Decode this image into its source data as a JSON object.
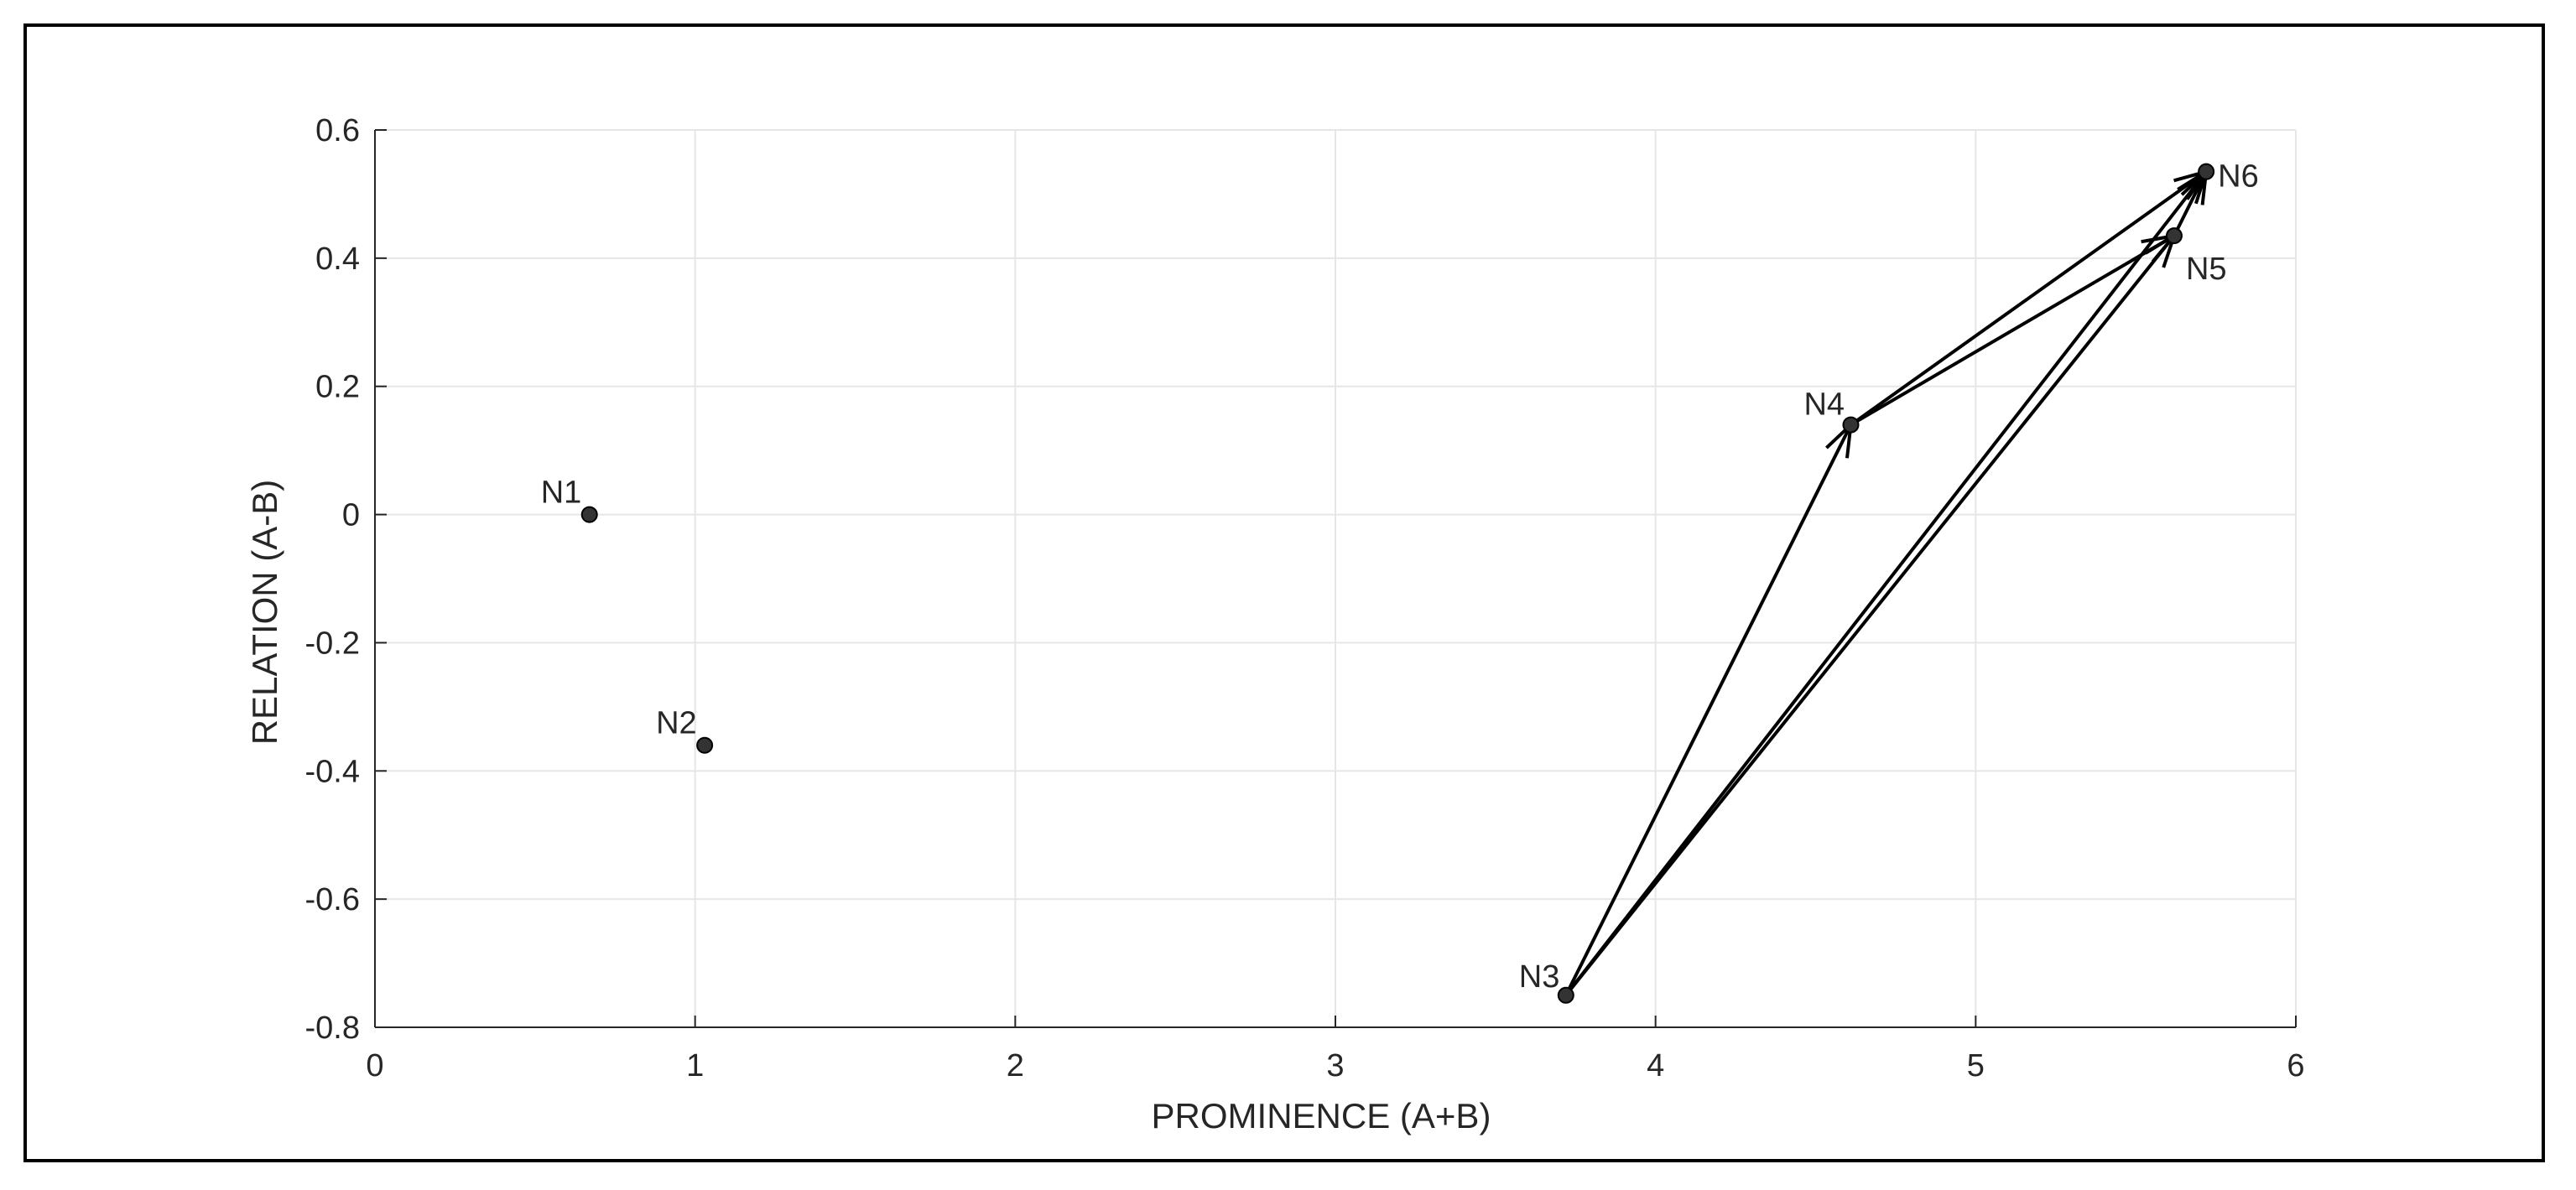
{
  "chart_data": {
    "type": "scatter",
    "xlabel": "PROMINENCE (A+B)",
    "ylabel": "RELATION (A-B)",
    "xlim": [
      0,
      6
    ],
    "ylim": [
      -0.8,
      0.6
    ],
    "xticks": [
      0,
      1,
      2,
      3,
      4,
      5,
      6
    ],
    "yticks": [
      -0.8,
      -0.6,
      -0.4,
      -0.2,
      0,
      0.2,
      0.4,
      0.6
    ],
    "grid": true,
    "points": [
      {
        "label": "N1",
        "x": 0.67,
        "y": 0.0
      },
      {
        "label": "N2",
        "x": 1.03,
        "y": -0.36
      },
      {
        "label": "N3",
        "x": 3.72,
        "y": -0.75
      },
      {
        "label": "N4",
        "x": 4.61,
        "y": 0.14
      },
      {
        "label": "N5",
        "x": 5.62,
        "y": 0.435
      },
      {
        "label": "N6",
        "x": 5.72,
        "y": 0.535
      }
    ],
    "arrows": [
      {
        "from": "N3",
        "to": "N4"
      },
      {
        "from": "N3",
        "to": "N5"
      },
      {
        "from": "N3",
        "to": "N6"
      },
      {
        "from": "N4",
        "to": "N5"
      },
      {
        "from": "N4",
        "to": "N6"
      },
      {
        "from": "N5",
        "to": "N6"
      }
    ],
    "colors": {
      "axis": "#262626",
      "grid": "#e6e6e6",
      "marker": "#333333",
      "arrow": "#000000"
    }
  }
}
